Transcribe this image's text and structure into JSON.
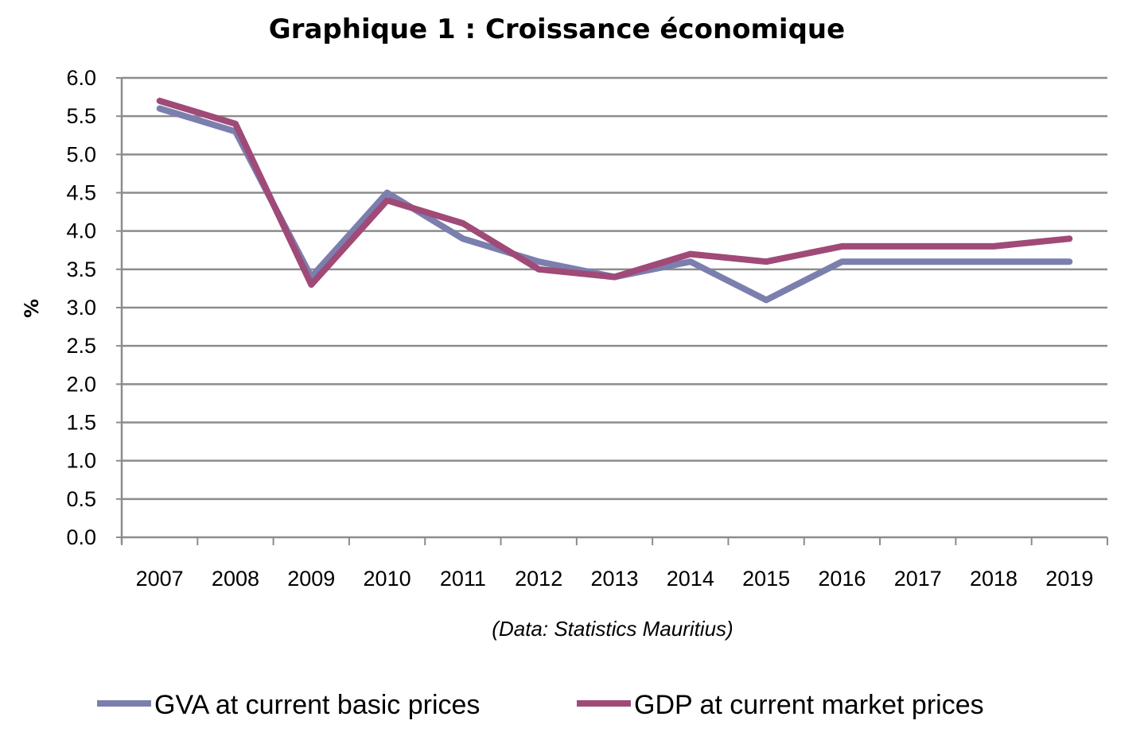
{
  "chart_data": {
    "type": "line",
    "title": "Graphique 1 : Croissance économique",
    "ylabel": "%",
    "xlabel": "",
    "note": "(Data: Statistics Mauritius)",
    "categories": [
      "2007",
      "2008",
      "2009",
      "2010",
      "2011",
      "2012",
      "2013",
      "2014",
      "2015",
      "2016",
      "2017",
      "2018",
      "2019"
    ],
    "ylim": [
      0,
      6
    ],
    "ytick_step": 0.5,
    "yticks": [
      "0.0",
      "0.5",
      "1.0",
      "1.5",
      "2.0",
      "2.5",
      "3.0",
      "3.5",
      "4.0",
      "4.5",
      "5.0",
      "5.5",
      "6.0"
    ],
    "grid": true,
    "legend_position": "bottom",
    "series": [
      {
        "name": "GVA at current basic prices",
        "color": "#7b7fad",
        "values": [
          5.6,
          5.3,
          3.4,
          4.5,
          3.9,
          3.6,
          3.4,
          3.6,
          3.1,
          3.6,
          3.6,
          3.6,
          3.6
        ]
      },
      {
        "name": "GDP at current market prices",
        "color": "#a04a78",
        "values": [
          5.7,
          5.4,
          3.3,
          4.4,
          4.1,
          3.5,
          3.4,
          3.7,
          3.6,
          3.8,
          3.8,
          3.8,
          3.9
        ]
      }
    ]
  }
}
